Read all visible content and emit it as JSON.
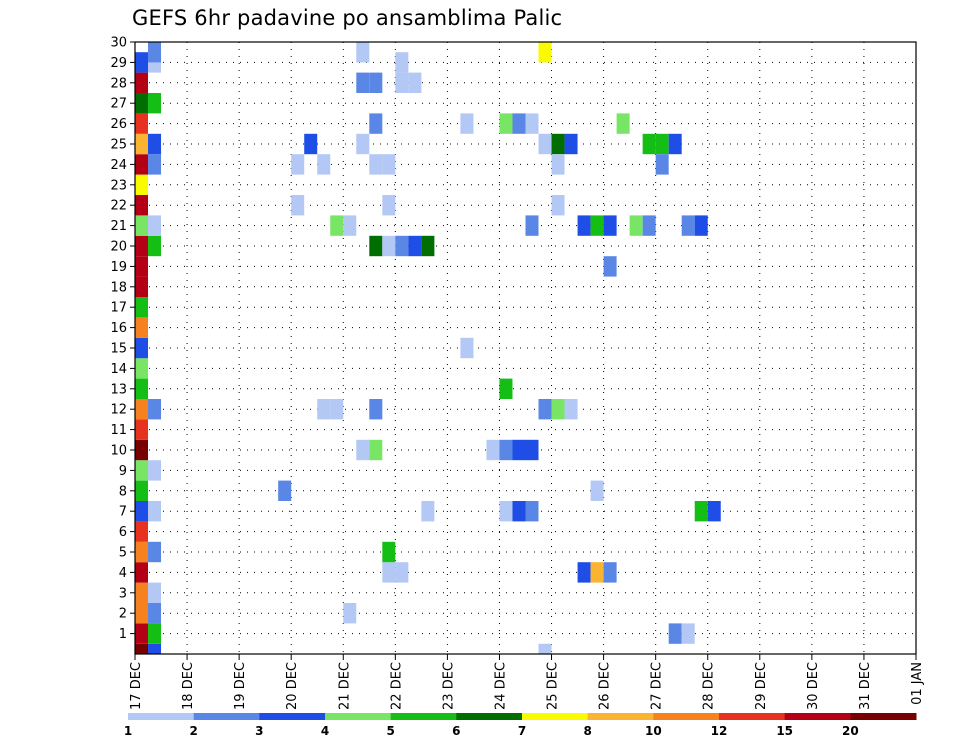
{
  "chart_data": {
    "type": "heatmap",
    "title": "GEFS 6hr padavine po ansamblima Palic",
    "xlabel": "",
    "ylabel": "",
    "x_ticks": [
      "17 DEC",
      "18 DEC",
      "19 DEC",
      "20 DEC",
      "21 DEC",
      "22 DEC",
      "23 DEC",
      "24 DEC",
      "25 DEC",
      "26 DEC",
      "27 DEC",
      "28 DEC",
      "29 DEC",
      "30 DEC",
      "31 DEC",
      "01 JAN"
    ],
    "y_ticks": [
      "1",
      "2",
      "3",
      "4",
      "5",
      "6",
      "7",
      "8",
      "9",
      "10",
      "11",
      "12",
      "13",
      "14",
      "15",
      "16",
      "17",
      "18",
      "19",
      "20",
      "21",
      "22",
      "23",
      "24",
      "25",
      "26",
      "27",
      "28",
      "29",
      "30"
    ],
    "x_range_days": [
      0,
      15
    ],
    "y_range": [
      0,
      30
    ],
    "grid": true,
    "colorbar": {
      "labels": [
        "1",
        "2",
        "3",
        "4",
        "5",
        "6",
        "7",
        "8",
        "10",
        "12",
        "15",
        "20"
      ],
      "colors": [
        "#b4c8f5",
        "#5a87e6",
        "#1e4ee6",
        "#78e664",
        "#14be14",
        "#006e00",
        "#fafa00",
        "#fab432",
        "#f5821e",
        "#e6321e",
        "#b40014",
        "#780000"
      ]
    },
    "cells": [
      {
        "d": 0.0,
        "m": 0,
        "c": 11
      },
      {
        "d": 0.0,
        "m": 1,
        "c": 10
      },
      {
        "d": 0.0,
        "m": 2,
        "c": 8
      },
      {
        "d": 0.0,
        "m": 3,
        "c": 8
      },
      {
        "d": 0.0,
        "m": 4,
        "c": 10
      },
      {
        "d": 0.0,
        "m": 5,
        "c": 8
      },
      {
        "d": 0.0,
        "m": 6,
        "c": 9
      },
      {
        "d": 0.0,
        "m": 7,
        "c": 2
      },
      {
        "d": 0.0,
        "m": 8,
        "c": 4
      },
      {
        "d": 0.0,
        "m": 9,
        "c": 3
      },
      {
        "d": 0.0,
        "m": 10,
        "c": 11
      },
      {
        "d": 0.0,
        "m": 11,
        "c": 9
      },
      {
        "d": 0.0,
        "m": 12,
        "c": 8
      },
      {
        "d": 0.0,
        "m": 13,
        "c": 4
      },
      {
        "d": 0.0,
        "m": 14,
        "c": 3
      },
      {
        "d": 0.0,
        "m": 15,
        "c": 2
      },
      {
        "d": 0.0,
        "m": 16,
        "c": 8
      },
      {
        "d": 0.0,
        "m": 17,
        "c": 4
      },
      {
        "d": 0.0,
        "m": 18,
        "c": 10
      },
      {
        "d": 0.0,
        "m": 19,
        "c": 10
      },
      {
        "d": 0.0,
        "m": 20,
        "c": 10
      },
      {
        "d": 0.0,
        "m": 21,
        "c": 3
      },
      {
        "d": 0.0,
        "m": 22,
        "c": 10
      },
      {
        "d": 0.0,
        "m": 23,
        "c": 6
      },
      {
        "d": 0.0,
        "m": 24,
        "c": 10
      },
      {
        "d": 0.0,
        "m": 25,
        "c": 7
      },
      {
        "d": 0.0,
        "m": 26,
        "c": 9
      },
      {
        "d": 0.0,
        "m": 27,
        "c": 5
      },
      {
        "d": 0.0,
        "m": 28,
        "c": 10
      },
      {
        "d": 0.0,
        "m": 29,
        "c": 2
      },
      {
        "d": 0.25,
        "m": 0,
        "c": 2
      },
      {
        "d": 0.25,
        "m": 1,
        "c": 4
      },
      {
        "d": 0.25,
        "m": 2,
        "c": 1
      },
      {
        "d": 0.25,
        "m": 3,
        "c": 0
      },
      {
        "d": 0.25,
        "m": 5,
        "c": 1
      },
      {
        "d": 0.25,
        "m": 7,
        "c": 0
      },
      {
        "d": 0.25,
        "m": 9,
        "c": 0
      },
      {
        "d": 0.25,
        "m": 12,
        "c": 1
      },
      {
        "d": 0.25,
        "m": 20,
        "c": 4
      },
      {
        "d": 0.25,
        "m": 21,
        "c": 0
      },
      {
        "d": 0.25,
        "m": 24,
        "c": 1
      },
      {
        "d": 0.25,
        "m": 25,
        "c": 2
      },
      {
        "d": 0.25,
        "m": 27,
        "c": 4
      },
      {
        "d": 0.25,
        "m": 29,
        "c": 0
      },
      {
        "d": 0.25,
        "m": 30,
        "c": 1
      },
      {
        "d": 2.75,
        "m": 8,
        "c": 1
      },
      {
        "d": 3.0,
        "m": 22,
        "c": 0
      },
      {
        "d": 3.0,
        "m": 24,
        "c": 0
      },
      {
        "d": 3.25,
        "m": 25,
        "c": 2
      },
      {
        "d": 3.5,
        "m": 12,
        "c": 0
      },
      {
        "d": 3.75,
        "m": 12,
        "c": 0
      },
      {
        "d": 3.5,
        "m": 24,
        "c": 0
      },
      {
        "d": 3.75,
        "m": 21,
        "c": 3
      },
      {
        "d": 4.0,
        "m": 21,
        "c": 0
      },
      {
        "d": 4.0,
        "m": 2,
        "c": 0
      },
      {
        "d": 4.25,
        "m": 30,
        "c": 0
      },
      {
        "d": 4.25,
        "m": 28,
        "c": 1
      },
      {
        "d": 4.5,
        "m": 28,
        "c": 1
      },
      {
        "d": 4.25,
        "m": 25,
        "c": 0
      },
      {
        "d": 4.25,
        "m": 10,
        "c": 0
      },
      {
        "d": 4.5,
        "m": 10,
        "c": 3
      },
      {
        "d": 4.5,
        "m": 12,
        "c": 1
      },
      {
        "d": 4.5,
        "m": 20,
        "c": 5
      },
      {
        "d": 4.5,
        "m": 26,
        "c": 1
      },
      {
        "d": 4.5,
        "m": 24,
        "c": 0
      },
      {
        "d": 4.75,
        "m": 24,
        "c": 0
      },
      {
        "d": 4.75,
        "m": 4,
        "c": 0
      },
      {
        "d": 5.0,
        "m": 4,
        "c": 0
      },
      {
        "d": 4.75,
        "m": 5,
        "c": 4
      },
      {
        "d": 4.75,
        "m": 20,
        "c": 0
      },
      {
        "d": 5.0,
        "m": 20,
        "c": 1
      },
      {
        "d": 5.25,
        "m": 20,
        "c": 2
      },
      {
        "d": 5.5,
        "m": 20,
        "c": 5
      },
      {
        "d": 4.75,
        "m": 22,
        "c": 0
      },
      {
        "d": 5.0,
        "m": 28,
        "c": 0
      },
      {
        "d": 5.25,
        "m": 28,
        "c": 0
      },
      {
        "d": 5.0,
        "m": 29,
        "c": 0
      },
      {
        "d": 5.5,
        "m": 7,
        "c": 0
      },
      {
        "d": 6.25,
        "m": 15,
        "c": 0
      },
      {
        "d": 6.25,
        "m": 26,
        "c": 0
      },
      {
        "d": 6.75,
        "m": 10,
        "c": 0
      },
      {
        "d": 7.0,
        "m": 10,
        "c": 1
      },
      {
        "d": 7.25,
        "m": 10,
        "c": 2
      },
      {
        "d": 7.5,
        "m": 10,
        "c": 2
      },
      {
        "d": 7.0,
        "m": 13,
        "c": 4
      },
      {
        "d": 7.0,
        "m": 7,
        "c": 0
      },
      {
        "d": 7.25,
        "m": 7,
        "c": 2
      },
      {
        "d": 7.5,
        "m": 7,
        "c": 1
      },
      {
        "d": 7.0,
        "m": 26,
        "c": 3
      },
      {
        "d": 7.25,
        "m": 26,
        "c": 1
      },
      {
        "d": 7.5,
        "m": 26,
        "c": 0
      },
      {
        "d": 7.5,
        "m": 21,
        "c": 1
      },
      {
        "d": 7.75,
        "m": 30,
        "c": 6
      },
      {
        "d": 7.75,
        "m": 0,
        "c": 0
      },
      {
        "d": 7.75,
        "m": 12,
        "c": 1
      },
      {
        "d": 8.0,
        "m": 12,
        "c": 3
      },
      {
        "d": 8.25,
        "m": 12,
        "c": 0
      },
      {
        "d": 7.75,
        "m": 25,
        "c": 0
      },
      {
        "d": 8.0,
        "m": 25,
        "c": 5
      },
      {
        "d": 8.25,
        "m": 25,
        "c": 2
      },
      {
        "d": 8.0,
        "m": 24,
        "c": 0
      },
      {
        "d": 8.0,
        "m": 22,
        "c": 0
      },
      {
        "d": 8.5,
        "m": 4,
        "c": 2
      },
      {
        "d": 8.75,
        "m": 4,
        "c": 7
      },
      {
        "d": 9.0,
        "m": 4,
        "c": 1
      },
      {
        "d": 8.75,
        "m": 8,
        "c": 0
      },
      {
        "d": 8.5,
        "m": 21,
        "c": 2
      },
      {
        "d": 8.75,
        "m": 21,
        "c": 4
      },
      {
        "d": 9.0,
        "m": 21,
        "c": 2
      },
      {
        "d": 9.0,
        "m": 19,
        "c": 1
      },
      {
        "d": 9.25,
        "m": 26,
        "c": 3
      },
      {
        "d": 9.5,
        "m": 21,
        "c": 3
      },
      {
        "d": 9.75,
        "m": 21,
        "c": 1
      },
      {
        "d": 9.75,
        "m": 25,
        "c": 4
      },
      {
        "d": 10.0,
        "m": 25,
        "c": 4
      },
      {
        "d": 10.25,
        "m": 25,
        "c": 2
      },
      {
        "d": 10.0,
        "m": 24,
        "c": 1
      },
      {
        "d": 10.25,
        "m": 1,
        "c": 1
      },
      {
        "d": 10.5,
        "m": 1,
        "c": 0
      },
      {
        "d": 10.5,
        "m": 21,
        "c": 1
      },
      {
        "d": 10.75,
        "m": 21,
        "c": 2
      },
      {
        "d": 10.75,
        "m": 7,
        "c": 4
      },
      {
        "d": 11.0,
        "m": 7,
        "c": 2
      }
    ]
  }
}
